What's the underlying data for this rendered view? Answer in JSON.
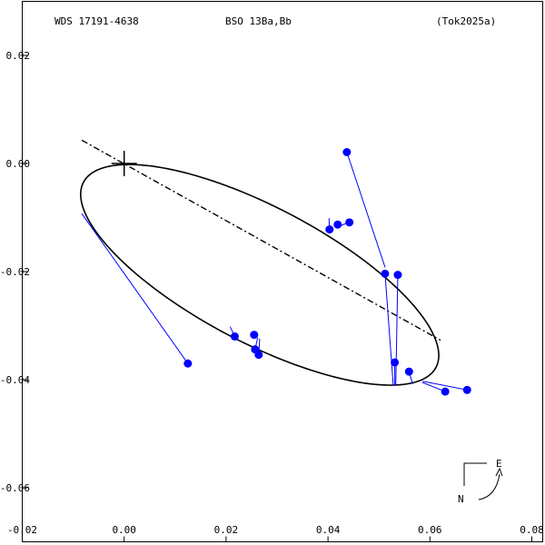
{
  "header": {
    "wds": "WDS 17191-4638",
    "system": "BSO  13Ba,Bb",
    "reference": "(Tok2025a)"
  },
  "compass": {
    "east_label": "E",
    "north_label": "N"
  },
  "colors": {
    "frame": "#000000",
    "orbit": "#000000",
    "observation": "#0000ff",
    "residual": "#0000ff"
  },
  "chart_data": {
    "type": "scatter",
    "title": "",
    "xlabel": "",
    "ylabel": "",
    "xlim": [
      -0.02,
      0.08
    ],
    "ylim": [
      0.03,
      -0.07
    ],
    "grid": false,
    "x_ticks": [
      "-0.02",
      "0.00",
      "0.02",
      "0.04",
      "0.06",
      "0.08"
    ],
    "x_tick_values": [
      -0.02,
      0.0,
      0.02,
      0.04,
      0.06,
      0.08
    ],
    "y_ticks": [
      "0.02",
      "0.00",
      "-0.02",
      "-0.04",
      "-0.06"
    ],
    "y_tick_values": [
      0.02,
      0.0,
      -0.02,
      -0.04,
      -0.06
    ],
    "primary": {
      "x": 0.0,
      "y": 0.0,
      "marker": "plus"
    },
    "orbit_ellipse": {
      "center": [
        0.0266,
        -0.0206
      ],
      "semi_major": 0.0386,
      "semi_minor": 0.0127,
      "angle_deg": 26.0
    },
    "line_of_nodes": {
      "from": [
        -0.0083,
        0.0043
      ],
      "to": [
        0.0621,
        -0.0327
      ]
    },
    "observations": [
      {
        "x": 0.0125,
        "y": -0.037,
        "fit_x": -0.0083,
        "fit_y": -0.0093
      },
      {
        "x": 0.0217,
        "y": -0.032,
        "fit_x": 0.0208,
        "fit_y": -0.0302
      },
      {
        "x": 0.0255,
        "y": -0.0317,
        "fit_x": 0.0255,
        "fit_y": -0.0318
      },
      {
        "x": 0.0257,
        "y": -0.0344,
        "fit_x": 0.0262,
        "fit_y": -0.0322
      },
      {
        "x": 0.0264,
        "y": -0.0354,
        "fit_x": 0.0266,
        "fit_y": -0.0324
      },
      {
        "x": 0.0403,
        "y": -0.0122,
        "fit_x": 0.0402,
        "fit_y": -0.0101
      },
      {
        "x": 0.0419,
        "y": -0.0113,
        "fit_x": 0.0412,
        "fit_y": -0.0112
      },
      {
        "x": 0.0442,
        "y": -0.0109,
        "fit_x": 0.0421,
        "fit_y": -0.0116
      },
      {
        "x": 0.0437,
        "y": 0.0021,
        "fit_x": 0.0512,
        "fit_y": -0.0192
      },
      {
        "x": 0.0512,
        "y": -0.0204,
        "fit_x": 0.0528,
        "fit_y": -0.041
      },
      {
        "x": 0.0537,
        "y": -0.0206,
        "fit_x": 0.0533,
        "fit_y": -0.041
      },
      {
        "x": 0.0531,
        "y": -0.0368,
        "fit_x": 0.0531,
        "fit_y": -0.041
      },
      {
        "x": 0.0559,
        "y": -0.0385,
        "fit_x": 0.0566,
        "fit_y": -0.0408
      },
      {
        "x": 0.063,
        "y": -0.0422,
        "fit_x": 0.0585,
        "fit_y": -0.0405
      },
      {
        "x": 0.0673,
        "y": -0.0419,
        "fit_x": 0.0586,
        "fit_y": -0.0403
      }
    ]
  }
}
